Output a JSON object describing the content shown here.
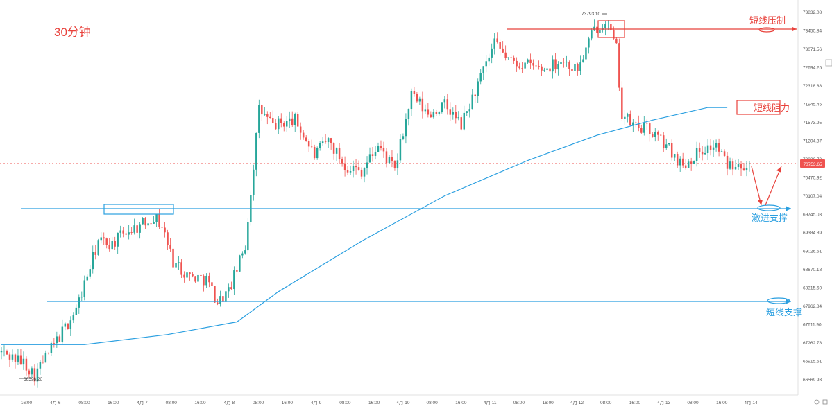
{
  "title": "30分钟",
  "colors": {
    "up": "#26a69a",
    "down": "#ef5350",
    "ma": "#2a9fe0",
    "annotation_red": "#e8413b",
    "annotation_blue": "#2a9fe0",
    "current_price_bg": "#ef5350",
    "axis_text": "#555555"
  },
  "chart_data": {
    "type": "candlestick",
    "title": "30分钟",
    "ylim": [
      66553.93,
      73832.08
    ],
    "y_ticks": [
      "73832.08",
      "73450.84",
      "73071.56",
      "72694.25",
      "72318.88",
      "71945.45",
      "71573.95",
      "71204.37",
      "70836.70",
      "70470.92",
      "70107.04",
      "69745.03",
      "69384.89",
      "69026.61",
      "68670.18",
      "68315.60",
      "67962.84",
      "67611.90",
      "67262.78",
      "66915.61",
      "66569.93"
    ],
    "x_ticks": [
      "16:00",
      "4月 6",
      "08:00",
      "16:00",
      "4月 7",
      "08:00",
      "16:00",
      "4月 8",
      "08:00",
      "16:00",
      "4月 9",
      "08:00",
      "16:00",
      "4月 10",
      "08:00",
      "16:00",
      "4月 11",
      "08:00",
      "16:00",
      "4月 12",
      "08:00",
      "16:00",
      "4月 13",
      "08:00",
      "16:00",
      "4月 14"
    ],
    "current_price": "70753.65",
    "high_marker": "73793.10",
    "low_marker": "66598.20",
    "key_points": [
      {
        "t": 0,
        "close": 67100
      },
      {
        "t": 8,
        "close": 66900
      },
      {
        "t": 12,
        "close": 66650
      },
      {
        "t": 16,
        "close": 67000
      },
      {
        "t": 22,
        "close": 67500
      },
      {
        "t": 27,
        "close": 67950
      },
      {
        "t": 35,
        "close": 69300
      },
      {
        "t": 40,
        "close": 69250
      },
      {
        "t": 45,
        "close": 69500
      },
      {
        "t": 50,
        "close": 69600
      },
      {
        "t": 55,
        "close": 69800
      },
      {
        "t": 58,
        "close": 69600
      },
      {
        "t": 62,
        "close": 68900
      },
      {
        "t": 68,
        "close": 68600
      },
      {
        "t": 74,
        "close": 68550
      },
      {
        "t": 78,
        "close": 68100
      },
      {
        "t": 82,
        "close": 68300
      },
      {
        "t": 88,
        "close": 69200
      },
      {
        "t": 93,
        "close": 71900
      },
      {
        "t": 98,
        "close": 71600
      },
      {
        "t": 106,
        "close": 71700
      },
      {
        "t": 113,
        "close": 71000
      },
      {
        "t": 118,
        "close": 71300
      },
      {
        "t": 124,
        "close": 70800
      },
      {
        "t": 130,
        "close": 70700
      },
      {
        "t": 136,
        "close": 71200
      },
      {
        "t": 142,
        "close": 70700
      },
      {
        "t": 148,
        "close": 72200
      },
      {
        "t": 154,
        "close": 71800
      },
      {
        "t": 160,
        "close": 72000
      },
      {
        "t": 166,
        "close": 71600
      },
      {
        "t": 172,
        "close": 72400
      },
      {
        "t": 178,
        "close": 73200
      },
      {
        "t": 184,
        "close": 72850
      },
      {
        "t": 190,
        "close": 72800
      },
      {
        "t": 196,
        "close": 72700
      },
      {
        "t": 202,
        "close": 72900
      },
      {
        "t": 208,
        "close": 72700
      },
      {
        "t": 214,
        "close": 73500
      },
      {
        "t": 218,
        "close": 73700
      },
      {
        "t": 222,
        "close": 73100
      },
      {
        "t": 224,
        "close": 71800
      },
      {
        "t": 228,
        "close": 71600
      },
      {
        "t": 234,
        "close": 71500
      },
      {
        "t": 240,
        "close": 71200
      },
      {
        "t": 246,
        "close": 70800
      },
      {
        "t": 252,
        "close": 71100
      },
      {
        "t": 258,
        "close": 71200
      },
      {
        "t": 262,
        "close": 70800
      },
      {
        "t": 266,
        "close": 70900
      },
      {
        "t": 270,
        "close": 70753.65
      }
    ],
    "moving_average": [
      {
        "t": 0,
        "v": 67250
      },
      {
        "t": 30,
        "v": 67250
      },
      {
        "t": 60,
        "v": 67450
      },
      {
        "t": 85,
        "v": 67700
      },
      {
        "t": 100,
        "v": 68300
      },
      {
        "t": 130,
        "v": 69300
      },
      {
        "t": 160,
        "v": 70200
      },
      {
        "t": 190,
        "v": 70900
      },
      {
        "t": 215,
        "v": 71400
      },
      {
        "t": 235,
        "v": 71700
      },
      {
        "t": 255,
        "v": 71950
      },
      {
        "t": 262,
        "v": 71950
      }
    ]
  },
  "annotations": {
    "resistance_strong": {
      "label": "短线压制",
      "price": 73450.84
    },
    "resistance_short": {
      "label": "短线阻力"
    },
    "support_aggressive": {
      "label": "激进支撑",
      "price": 69830
    },
    "support_short": {
      "label": "短线支撑",
      "price": 68000
    }
  }
}
